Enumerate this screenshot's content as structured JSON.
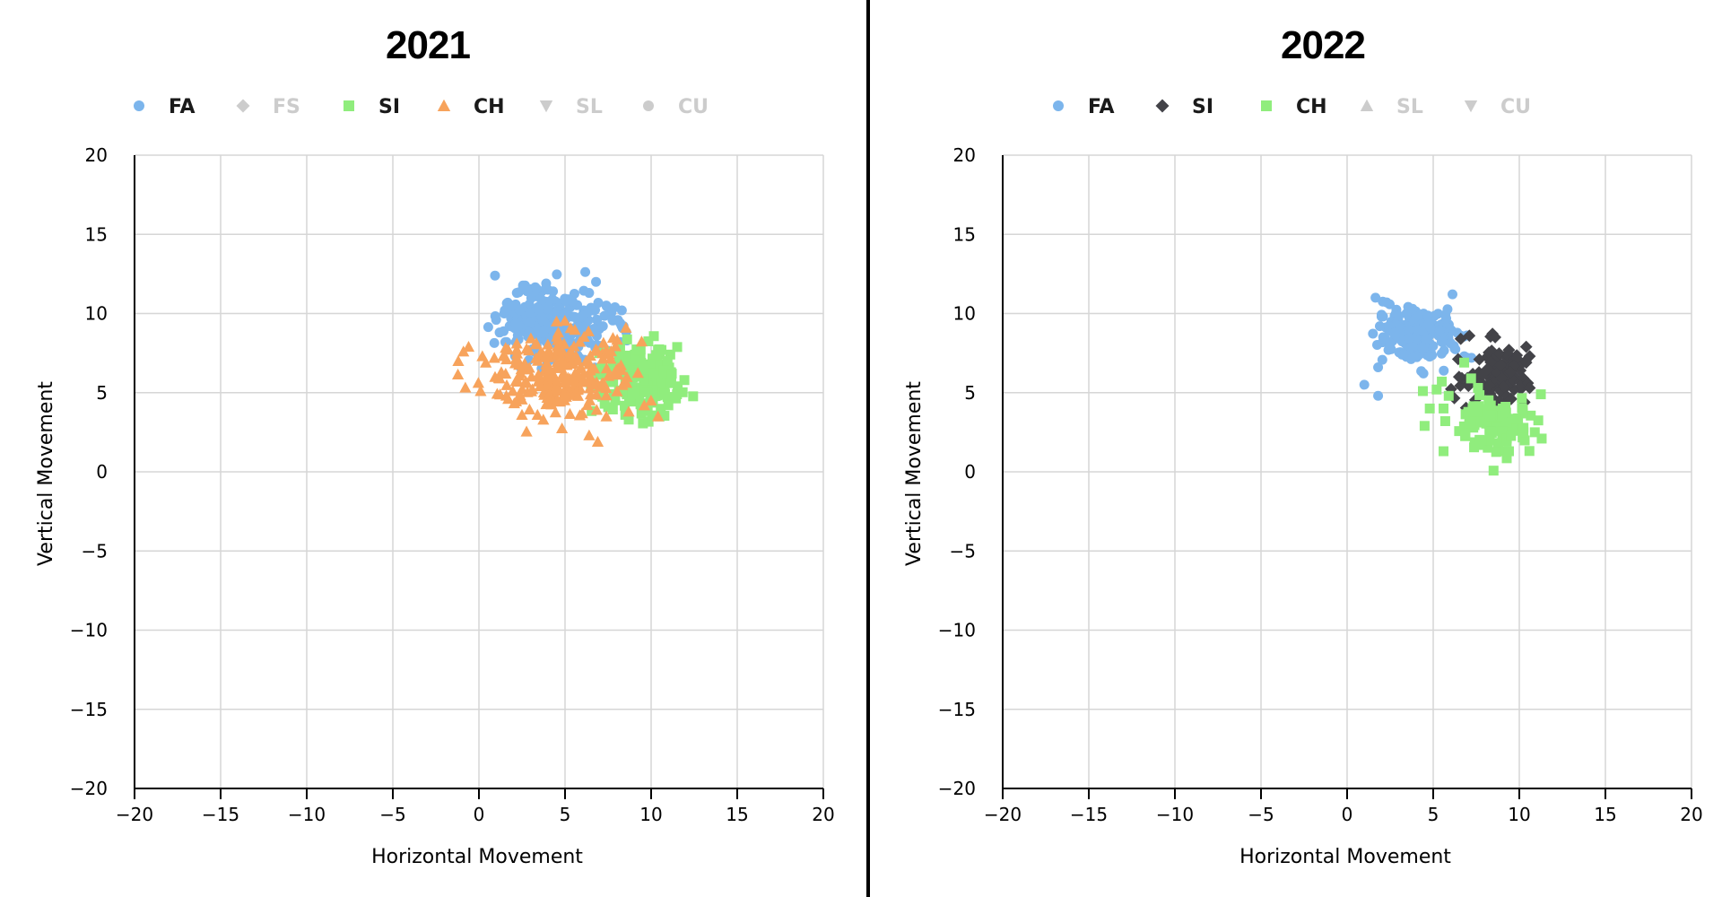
{
  "chart_data": [
    {
      "type": "scatter",
      "title": "2021",
      "xlabel": "Horizontal Movement",
      "ylabel": "Vertical Movement",
      "xlim": [
        -20,
        20
      ],
      "ylim": [
        -20,
        20
      ],
      "xticks": [
        "−20",
        "−15",
        "−10",
        "−5",
        "0",
        "5",
        "10",
        "15",
        "20"
      ],
      "yticks": [
        "20",
        "15",
        "10",
        "5",
        "0",
        "−5",
        "−10",
        "−15",
        "−20"
      ],
      "grid": true,
      "legend_position": "top",
      "series": [
        {
          "name": "FA",
          "marker": "circle",
          "color": "#7cb5ec",
          "visible": true,
          "cluster": {
            "cx": 4.3,
            "cy": 9.4,
            "sx": 1.6,
            "sy": 1.1,
            "n": 260
          },
          "points": [
            [
              1,
              9.6
            ],
            [
              1.2,
              8.8
            ],
            [
              1.5,
              10.2
            ],
            [
              2.2,
              11.3
            ],
            [
              1.9,
              10.5
            ],
            [
              2.8,
              11.4
            ],
            [
              4,
              11.5
            ],
            [
              4.3,
              11.4
            ],
            [
              5.2,
              10.9
            ],
            [
              6.4,
              11.3
            ],
            [
              7.4,
              10.5
            ],
            [
              6.8,
              12
            ],
            [
              7.9,
              10.4
            ],
            [
              8.3,
              10.2
            ],
            [
              8.2,
              9.4
            ],
            [
              8.4,
              9.2
            ],
            [
              8.2,
              8.2
            ],
            [
              2.2,
              8.3
            ],
            [
              1.6,
              8.2
            ],
            [
              7.2,
              9.2
            ]
          ]
        },
        {
          "name": "FS",
          "marker": "diamond",
          "color": "#cccccc",
          "visible": false,
          "points": []
        },
        {
          "name": "SI",
          "marker": "square",
          "color": "#90ed7d",
          "visible": true,
          "cluster": {
            "cx": 9.4,
            "cy": 5.8,
            "sx": 1.1,
            "sy": 1.1,
            "n": 160
          },
          "points": [
            [
              7,
              7.5
            ],
            [
              8.2,
              7.8
            ],
            [
              10.4,
              7.7
            ],
            [
              10.6,
              7.7
            ],
            [
              11.1,
              5.6
            ],
            [
              11.5,
              4.9
            ],
            [
              11,
              4.2
            ],
            [
              10.5,
              3.5
            ],
            [
              9.8,
              4
            ],
            [
              8.7,
              3.3
            ],
            [
              7.1,
              6.5
            ],
            [
              7.3,
              4.3
            ],
            [
              8.5,
              3.6
            ],
            [
              11.2,
              6.2
            ]
          ]
        },
        {
          "name": "CH",
          "marker": "triangle",
          "color": "#f7a35c",
          "visible": true,
          "cluster": {
            "cx": 4.6,
            "cy": 6.2,
            "sx": 1.9,
            "sy": 1.3,
            "n": 230
          },
          "points": [
            [
              -1.2,
              7
            ],
            [
              -0.9,
              7.6
            ],
            [
              -0.6,
              7.9
            ],
            [
              0.2,
              7.3
            ],
            [
              0.4,
              6.9
            ],
            [
              0.1,
              5.1
            ],
            [
              1.3,
              6.3
            ],
            [
              1.6,
              7.1
            ],
            [
              1.2,
              5.9
            ],
            [
              1.7,
              4.6
            ],
            [
              2.5,
              3.6
            ],
            [
              3.4,
              3.6
            ],
            [
              6,
              3.7
            ],
            [
              6.4,
              2.3
            ],
            [
              6.9,
              1.9
            ],
            [
              7.4,
              3.5
            ],
            [
              8.7,
              3.8
            ],
            [
              9.6,
              4.2
            ],
            [
              10.4,
              3.5
            ],
            [
              2.2,
              8.1
            ]
          ]
        },
        {
          "name": "SL",
          "marker": "triangle-down",
          "color": "#cccccc",
          "visible": false,
          "points": []
        },
        {
          "name": "CU",
          "marker": "circle",
          "color": "#cccccc",
          "visible": false,
          "points": []
        }
      ]
    },
    {
      "type": "scatter",
      "title": "2022",
      "xlabel": "Horizontal Movement",
      "ylabel": "Vertical Movement",
      "xlim": [
        -20,
        20
      ],
      "ylim": [
        -20,
        20
      ],
      "xticks": [
        "−20",
        "−15",
        "−10",
        "−5",
        "0",
        "5",
        "10",
        "15",
        "20"
      ],
      "yticks": [
        "20",
        "15",
        "10",
        "5",
        "0",
        "−5",
        "−10",
        "−15",
        "−20"
      ],
      "grid": true,
      "legend_position": "top",
      "series": [
        {
          "name": "FA",
          "marker": "circle",
          "color": "#7cb5ec",
          "visible": true,
          "cluster": {
            "cx": 4.2,
            "cy": 8.6,
            "sx": 1.1,
            "sy": 0.9,
            "n": 200
          },
          "points": [
            [
              2.3,
              10.7
            ],
            [
              2,
              9.8
            ],
            [
              1.9,
              9.2
            ],
            [
              2.2,
              8.4
            ],
            [
              2.4,
              7.7
            ],
            [
              1.8,
              6.6
            ],
            [
              1,
              5.5
            ],
            [
              1.8,
              4.8
            ],
            [
              3.8,
              10.3
            ],
            [
              6.6,
              8.6
            ],
            [
              6.8,
              7.3
            ]
          ]
        },
        {
          "name": "SI",
          "marker": "diamond",
          "color": "#434348",
          "visible": true,
          "cluster": {
            "cx": 8.6,
            "cy": 6.1,
            "sx": 0.9,
            "sy": 0.9,
            "n": 110
          },
          "points": [
            [
              6.6,
              8.4
            ],
            [
              7.1,
              8.6
            ],
            [
              8.6,
              8.5
            ],
            [
              9.4,
              7.7
            ],
            [
              10.4,
              7.9
            ],
            [
              10.4,
              6.9
            ],
            [
              10.6,
              7.3
            ],
            [
              10.5,
              5.6
            ],
            [
              10.6,
              5.3
            ],
            [
              10.3,
              4.4
            ],
            [
              6.5,
              6
            ]
          ]
        },
        {
          "name": "CH",
          "marker": "square",
          "color": "#90ed7d",
          "visible": true,
          "cluster": {
            "cx": 8.5,
            "cy": 3.0,
            "sx": 1.0,
            "sy": 0.9,
            "n": 120
          },
          "points": [
            [
              4.4,
              5.1
            ],
            [
              4.8,
              4
            ],
            [
              4.5,
              2.9
            ],
            [
              5.2,
              5.2
            ],
            [
              5.5,
              5.7
            ],
            [
              5.6,
              4
            ],
            [
              5.9,
              4.8
            ],
            [
              5.7,
              3.2
            ],
            [
              5.6,
              1.3
            ],
            [
              6.8,
              6.9
            ],
            [
              7.2,
              5.9
            ],
            [
              7.6,
              5.3
            ],
            [
              9.4,
              1.3
            ],
            [
              11.3,
              2.1
            ],
            [
              10.9,
              2.5
            ]
          ]
        },
        {
          "name": "SL",
          "marker": "triangle",
          "color": "#cccccc",
          "visible": false,
          "points": []
        },
        {
          "name": "CU",
          "marker": "triangle-down",
          "color": "#cccccc",
          "visible": false,
          "points": []
        }
      ]
    }
  ]
}
